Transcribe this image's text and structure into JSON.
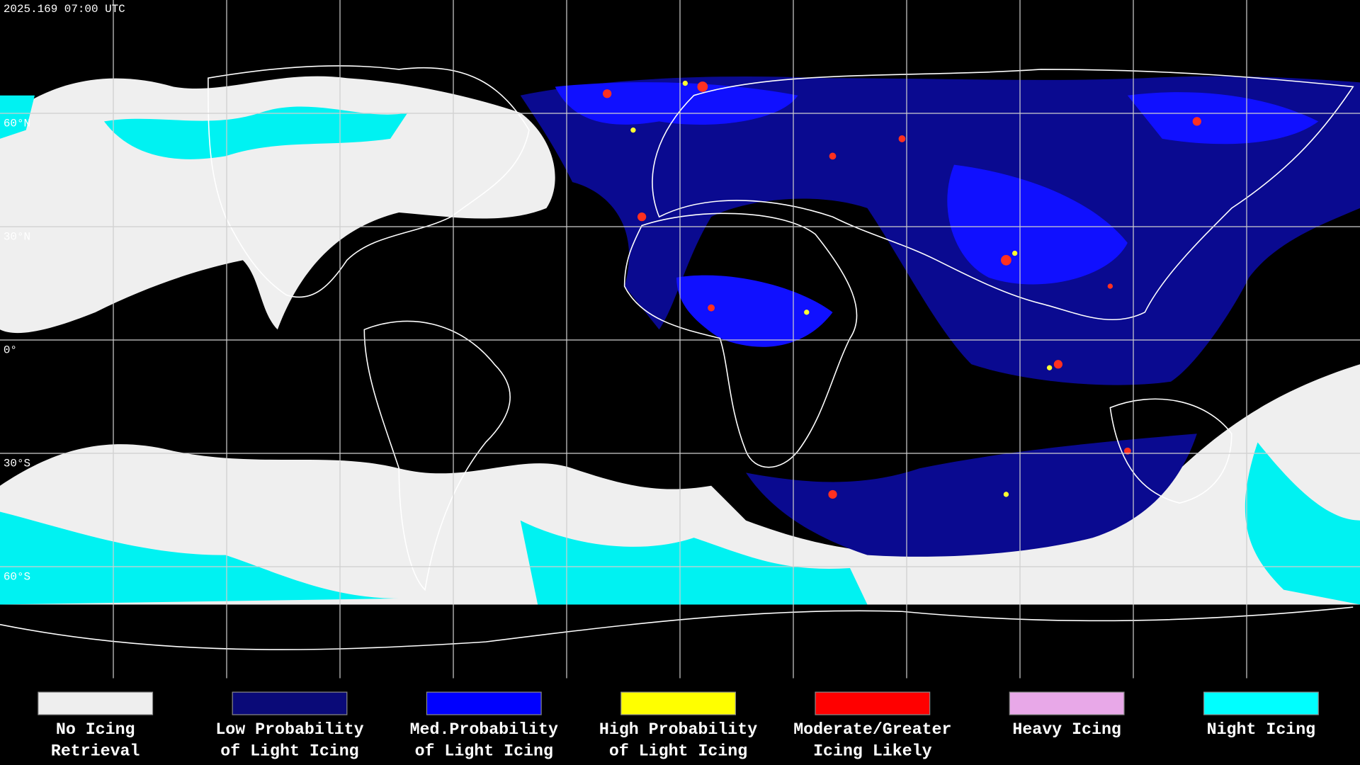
{
  "map": {
    "timestamp": "2025.169 07:00 UTC",
    "lat_labels": [
      "60°N",
      "30°N",
      "0°",
      "30°S",
      "60°S"
    ]
  },
  "legend": {
    "items": [
      {
        "label_lines": [
          "No Icing",
          "Retrieval"
        ],
        "color": "#eeeeee"
      },
      {
        "label_lines": [
          "Low Probability",
          "of Light Icing"
        ],
        "color": "#0a0a78"
      },
      {
        "label_lines": [
          "Med.Probability",
          "of Light Icing"
        ],
        "color": "#0000ff"
      },
      {
        "label_lines": [
          "High Probability",
          "of Light Icing"
        ],
        "color": "#ffff00"
      },
      {
        "label_lines": [
          "Moderate/Greater",
          "Icing Likely"
        ],
        "color": "#ff0000"
      },
      {
        "label_lines": [
          "Heavy Icing"
        ],
        "color": "#e8a8e8"
      },
      {
        "label_lines": [
          "Night Icing"
        ],
        "color": "#00ffff"
      }
    ]
  }
}
